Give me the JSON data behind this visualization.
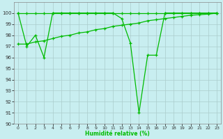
{
  "xlabel": "Humidité relative (%)",
  "xlim": [
    -0.5,
    23.5
  ],
  "ylim": [
    90,
    101
  ],
  "yticks": [
    90,
    91,
    92,
    93,
    94,
    95,
    96,
    97,
    98,
    99,
    100
  ],
  "xticks": [
    0,
    1,
    2,
    3,
    4,
    5,
    6,
    7,
    8,
    9,
    10,
    11,
    12,
    13,
    14,
    15,
    16,
    17,
    18,
    19,
    20,
    21,
    22,
    23
  ],
  "background_color": "#c8eef0",
  "grid_color": "#aacccc",
  "line_color": "#00bb00",
  "line1_x": [
    0,
    1,
    2,
    3,
    4,
    5,
    6,
    7,
    8,
    9,
    10,
    11,
    12,
    13,
    14,
    15,
    16,
    17,
    18,
    19,
    20,
    21,
    22,
    23
  ],
  "line1_y": [
    100,
    100,
    100,
    100,
    100,
    100,
    100,
    100,
    100,
    100,
    100,
    100,
    100,
    100,
    100,
    100,
    100,
    100,
    100,
    100,
    100,
    100,
    100,
    100
  ],
  "line2_x": [
    0,
    1,
    2,
    3,
    4,
    5,
    6,
    7,
    8,
    9,
    10,
    11,
    12,
    13,
    14,
    15,
    16,
    17,
    18,
    19,
    20,
    21,
    22,
    23
  ],
  "line2_y": [
    100,
    97,
    98,
    96,
    100,
    100,
    100,
    100,
    100,
    100,
    100,
    100,
    99.5,
    97.3,
    91,
    96.2,
    96.2,
    100,
    100,
    100,
    100,
    100,
    100,
    100
  ],
  "line3_x": [
    0,
    1,
    2,
    3,
    4,
    5,
    6,
    7,
    8,
    9,
    10,
    11,
    12,
    13,
    14,
    15,
    16,
    17,
    18,
    19,
    20,
    21,
    22,
    23
  ],
  "line3_y": [
    97.2,
    97.2,
    97.4,
    97.5,
    97.7,
    97.9,
    98.0,
    98.2,
    98.3,
    98.5,
    98.6,
    98.8,
    98.9,
    99.0,
    99.1,
    99.3,
    99.4,
    99.5,
    99.6,
    99.7,
    99.8,
    99.85,
    99.9,
    100
  ]
}
